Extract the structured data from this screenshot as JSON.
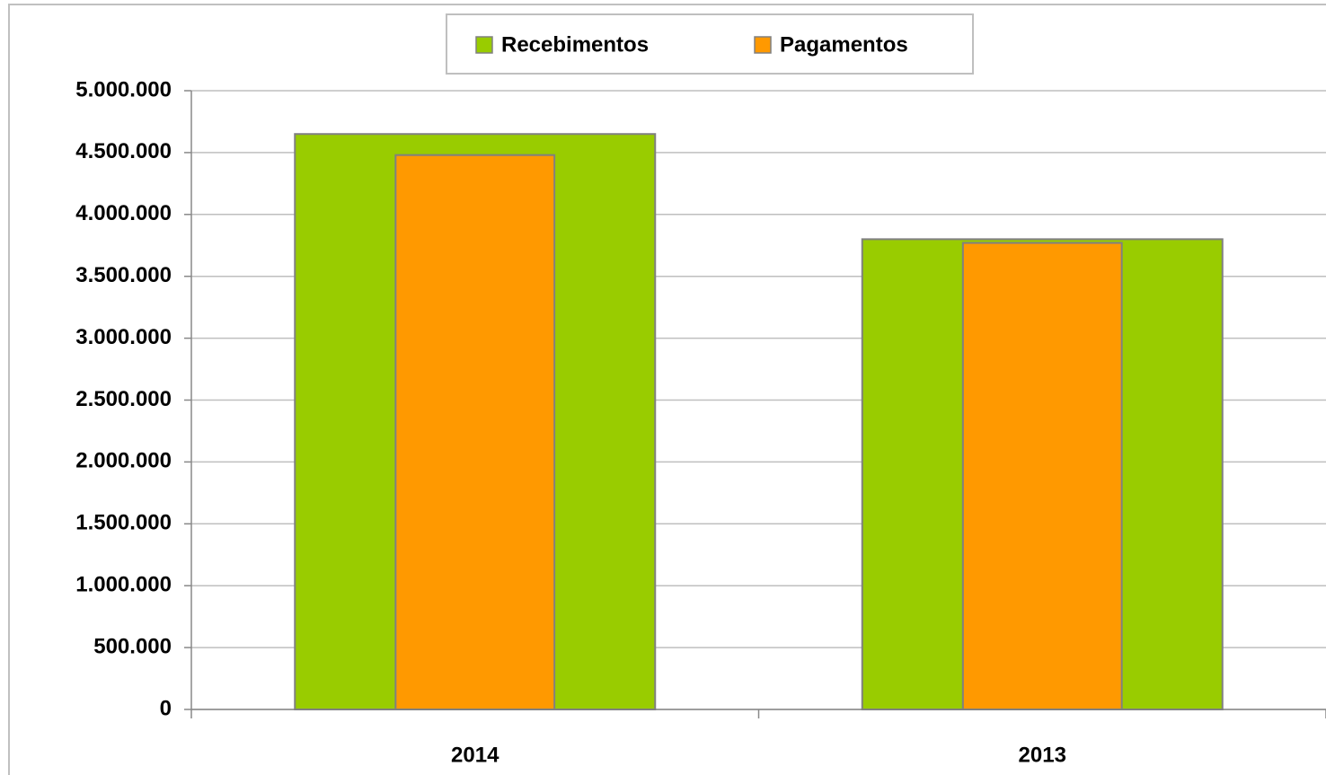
{
  "chart_data": {
    "type": "bar",
    "categories": [
      "2014",
      "2013"
    ],
    "series": [
      {
        "name": "Recebimentos",
        "color": "#99cc00",
        "values": [
          4650000,
          3800000
        ]
      },
      {
        "name": "Pagamentos",
        "color": "#ff9900",
        "values": [
          4480000,
          3770000
        ]
      }
    ],
    "ylim": [
      0,
      5000000
    ],
    "yticks": [
      0,
      {
        "value": 500000,
        "label": "500.000"
      },
      {
        "value": 1000000,
        "label": "1.000.000"
      },
      {
        "value": 1500000,
        "label": "1.500.000"
      },
      {
        "value": 2000000,
        "label": "2.000.000"
      },
      {
        "value": 2500000,
        "label": "2.500.000"
      },
      {
        "value": 3000000,
        "label": "3.000.000"
      },
      {
        "value": 3500000,
        "label": "3.500.000"
      },
      {
        "value": 4000000,
        "label": "4.000.000"
      },
      {
        "value": 4500000,
        "label": "4.500.000"
      },
      {
        "value": 5000000,
        "label": "5.000.000"
      }
    ],
    "grid": true,
    "legend": "top"
  }
}
